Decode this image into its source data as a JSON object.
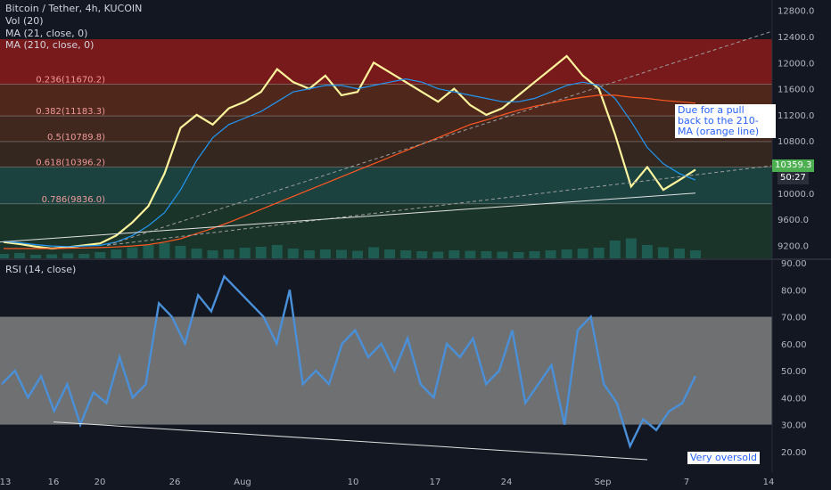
{
  "header": {
    "symbol_line": "Bitcoin / Tether, 4h, KUCOIN",
    "vol": "Vol (20)",
    "ma21": "MA (21, close, 0)",
    "ma210": "MA (210, close, 0)"
  },
  "rsi_header": "RSI (14, close)",
  "annotations": {
    "pullback": [
      "Due for a pull",
      "back to the 210-",
      "MA (orange line)"
    ],
    "oversold": "Very oversold"
  },
  "price_tag": {
    "value": "10359.3",
    "countdown": "50:27"
  },
  "colors": {
    "background": "#131722",
    "price_line": "#fff59d",
    "ma21": "#2196f3",
    "ma210": "#ff5722",
    "rsi_line": "#4a90d9",
    "fib_top": "#8b1a1a",
    "fib_mid": "#5a2a1a",
    "fib_low": "#1d4a44",
    "fib_bottom": "#1d3a2a"
  },
  "chart_data": [
    {
      "type": "line",
      "title": "Bitcoin / Tether, 4h, KUCOIN",
      "y_axis_ticks": [
        "12800.0",
        "12400.0",
        "12000.0",
        "11600.0",
        "11200.0",
        "10800.0",
        "10400.0",
        "10000.0",
        "9600.0",
        "9200.0"
      ],
      "ylim": [
        9000,
        12850
      ],
      "x_tick_labels": [
        "13",
        "16",
        "20",
        "26",
        "Aug",
        "10",
        "17",
        "24",
        "Sep",
        "7",
        "14"
      ],
      "fib_levels": [
        {
          "label": "0.236(11670.2)",
          "value": 11670.2
        },
        {
          "label": "0.382(11183.3)",
          "value": 11183.3
        },
        {
          "label": "0.5(10789.8)",
          "value": 10789.8
        },
        {
          "label": "0.618(10396.2)",
          "value": 10396.2
        },
        {
          "label": "0.786(9836.0)",
          "value": 9836.0
        }
      ],
      "series": [
        {
          "name": "Bitcoin / Tether",
          "values": [
            9250,
            9220,
            9180,
            9150,
            9170,
            9200,
            9230,
            9350,
            9550,
            9800,
            10300,
            11000,
            11200,
            11050,
            11300,
            11400,
            11550,
            11900,
            11700,
            11600,
            11800,
            11500,
            11550,
            12000,
            11850,
            11700,
            11550,
            11400,
            11600,
            11350,
            11200,
            11300,
            11500,
            11700,
            11900,
            12100,
            11800,
            11600,
            10900,
            10100,
            10400,
            10050,
            10200,
            10359.3
          ]
        },
        {
          "name": "MA (21, close, 0)",
          "values": [
            9260,
            9240,
            9210,
            9190,
            9180,
            9190,
            9200,
            9250,
            9350,
            9500,
            9700,
            10050,
            10500,
            10850,
            11050,
            11150,
            11250,
            11400,
            11550,
            11600,
            11650,
            11650,
            11600,
            11650,
            11700,
            11750,
            11700,
            11600,
            11550,
            11500,
            11450,
            11400,
            11400,
            11450,
            11550,
            11650,
            11700,
            11650,
            11450,
            11100,
            10700,
            10450,
            10300,
            10200
          ]
        },
        {
          "name": "MA (210, close, 0)",
          "values": [
            9150,
            9150,
            9150,
            9150,
            9155,
            9160,
            9165,
            9175,
            9190,
            9210,
            9250,
            9300,
            9380,
            9460,
            9550,
            9650,
            9750,
            9850,
            9950,
            10050,
            10150,
            10250,
            10350,
            10450,
            10550,
            10650,
            10750,
            10850,
            10950,
            11050,
            11120,
            11200,
            11270,
            11330,
            11380,
            11430,
            11470,
            11500,
            11500,
            11470,
            11450,
            11420,
            11400,
            11380
          ]
        }
      ],
      "volume": [
        10,
        12,
        8,
        9,
        11,
        10,
        14,
        20,
        25,
        30,
        35,
        28,
        22,
        18,
        20,
        24,
        26,
        30,
        22,
        18,
        20,
        19,
        17,
        25,
        20,
        18,
        16,
        15,
        18,
        17,
        16,
        15,
        14,
        16,
        18,
        20,
        22,
        24,
        40,
        45,
        30,
        25,
        22,
        18
      ]
    },
    {
      "type": "line",
      "title": "RSI (14, close)",
      "y_axis_ticks": [
        "90.00",
        "80.00",
        "70.00",
        "60.00",
        "50.00",
        "40.00",
        "30.00",
        "20.00"
      ],
      "ylim": [
        15,
        91
      ],
      "band": [
        30,
        70
      ],
      "series": [
        {
          "name": "RSI (14, close)",
          "values": [
            45,
            50,
            40,
            48,
            35,
            45,
            30,
            42,
            38,
            55,
            40,
            45,
            75,
            70,
            60,
            78,
            72,
            85,
            80,
            75,
            70,
            60,
            80,
            45,
            50,
            45,
            60,
            65,
            55,
            60,
            50,
            62,
            45,
            40,
            60,
            55,
            62,
            45,
            50,
            65,
            38,
            45,
            52,
            30,
            65,
            70,
            45,
            38,
            22,
            32,
            28,
            35,
            38,
            48
          ]
        }
      ]
    }
  ]
}
